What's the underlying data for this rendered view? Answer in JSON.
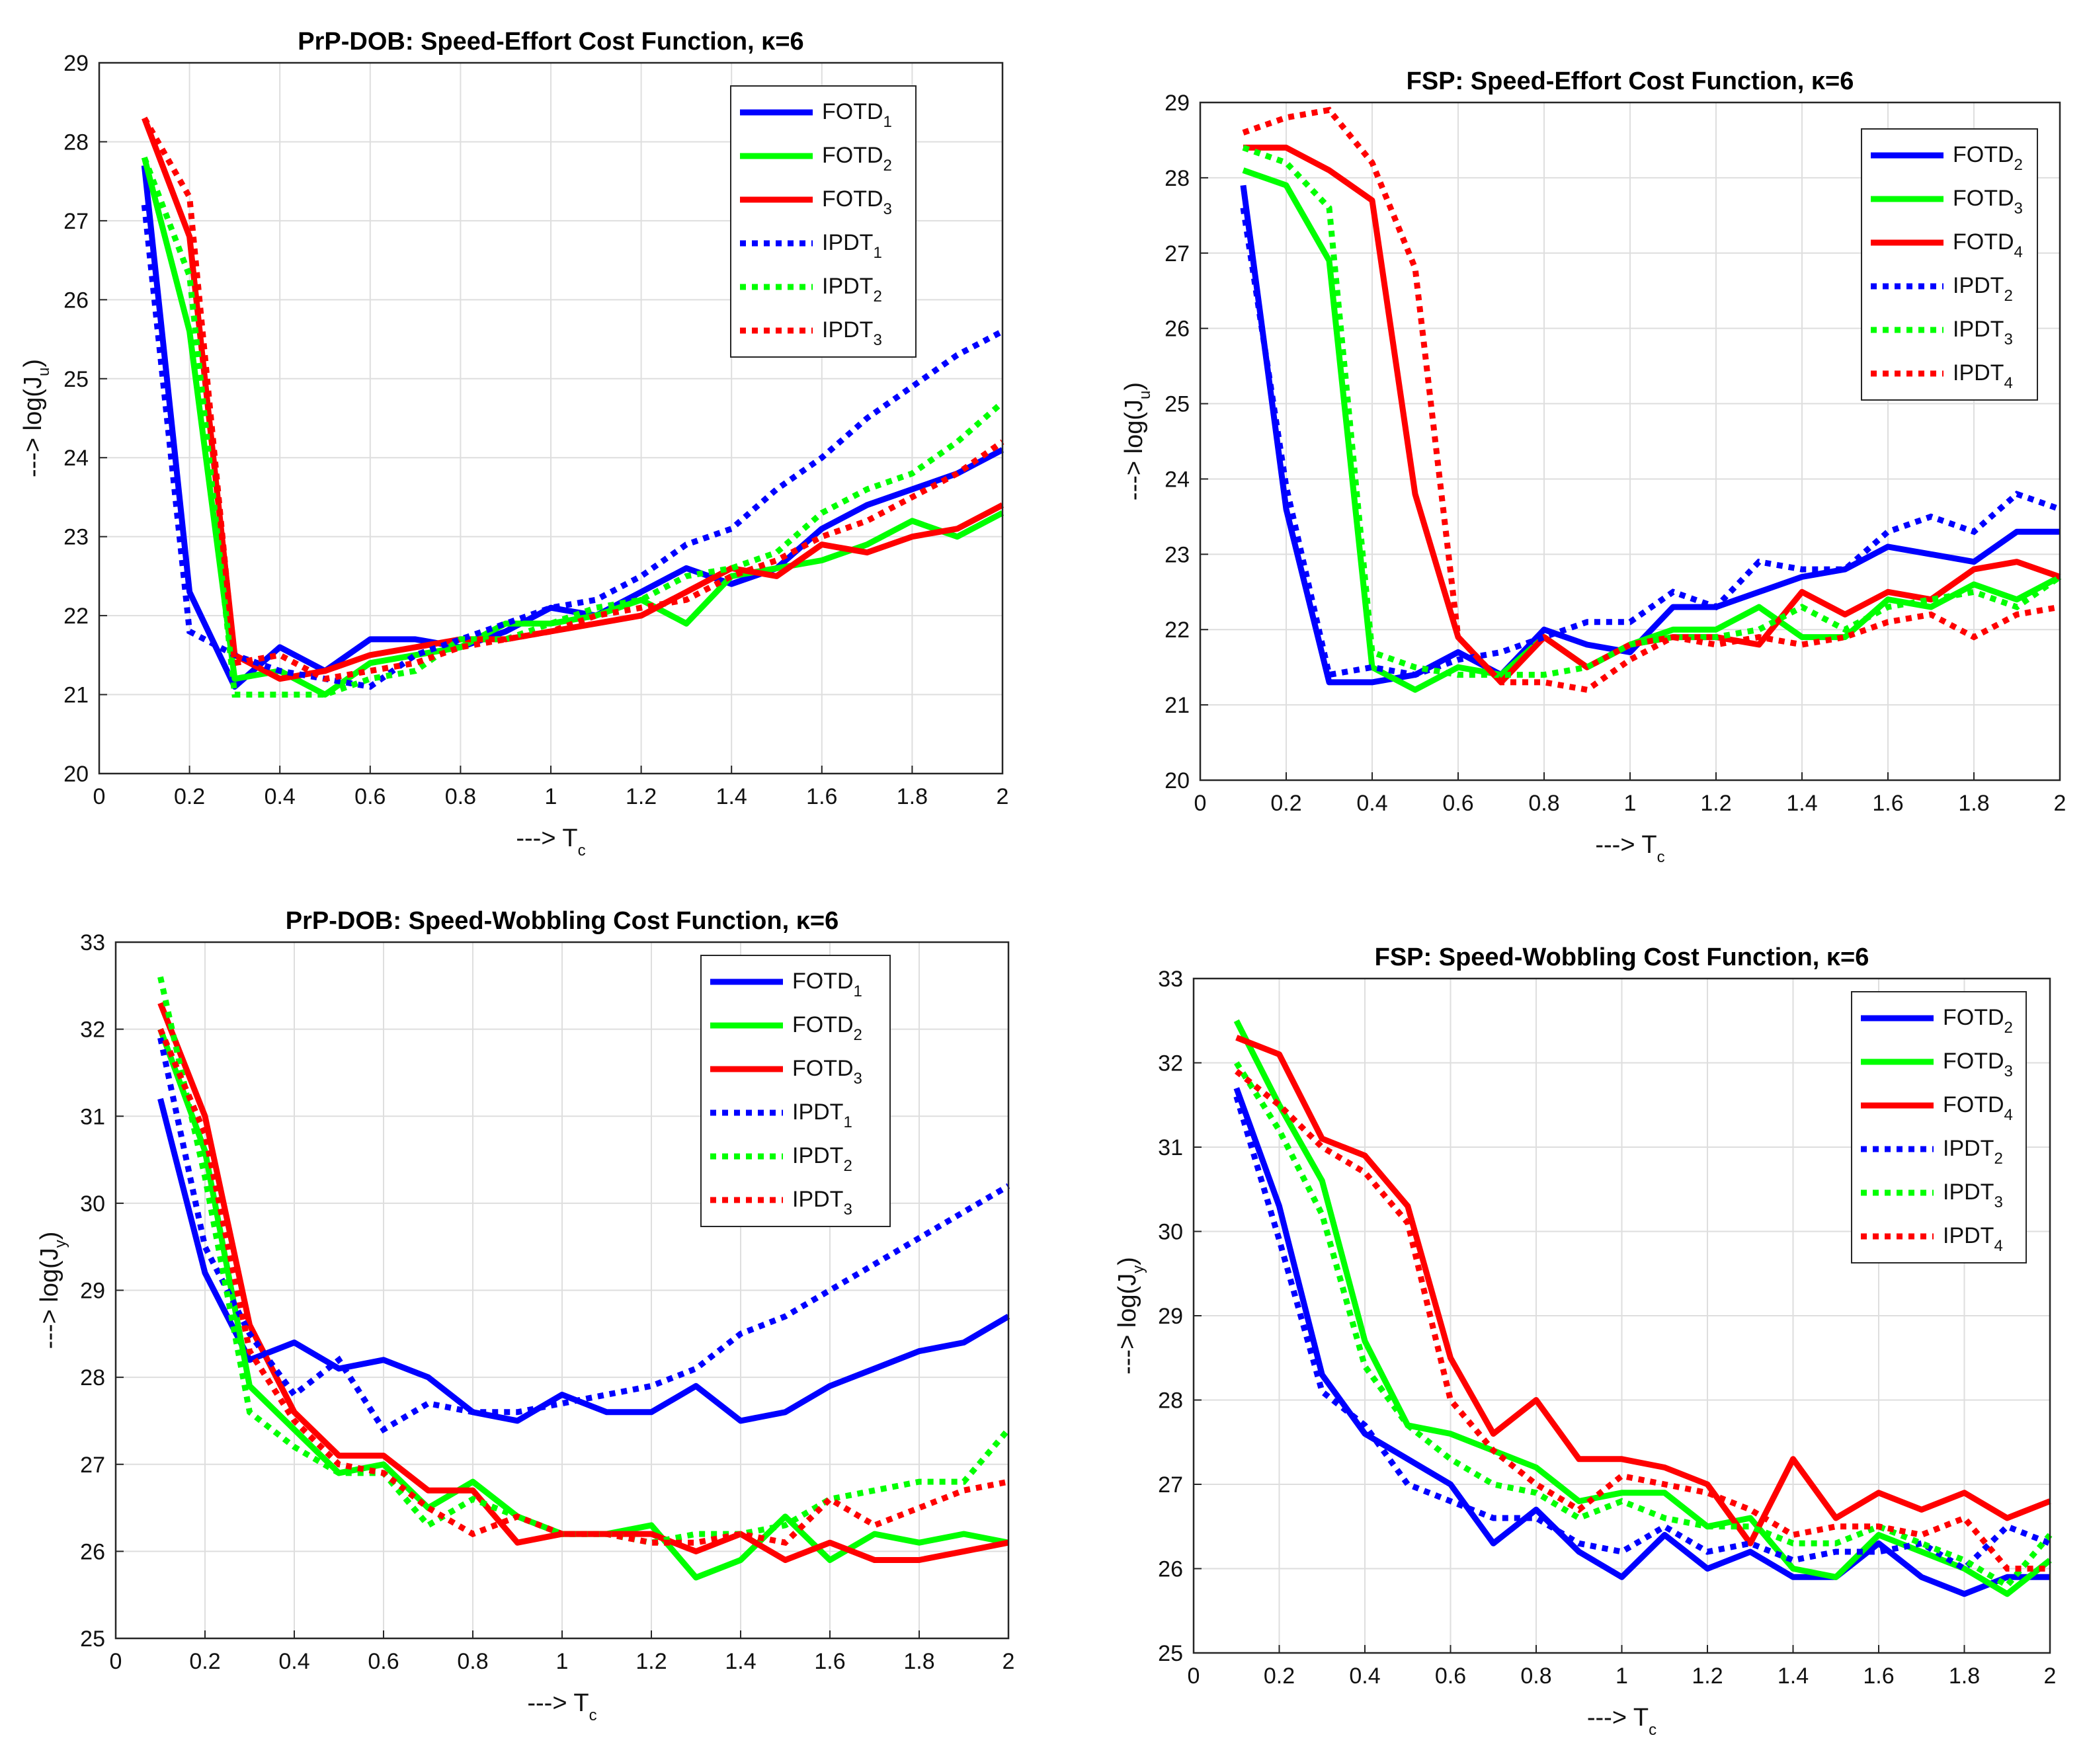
{
  "chart_data": [
    {
      "type": "line",
      "title": "PrP-DOB: Speed-Effort Cost Function, κ=6",
      "xlabel_arrow": "--->",
      "xlabel": "T",
      "xlabel_sub": "c",
      "ylabel_arrow": "--->",
      "ylabel": "log(J",
      "ylabel_sub": "u",
      "ylabel_close": ")",
      "xlim": [
        0,
        2
      ],
      "ylim": [
        20,
        29
      ],
      "xticks": [
        "0",
        "0.2",
        "0.4",
        "0.6",
        "0.8",
        "1",
        "1.2",
        "1.4",
        "1.6",
        "1.8",
        "2"
      ],
      "yticks": [
        "20",
        "21",
        "22",
        "23",
        "24",
        "25",
        "26",
        "27",
        "28",
        "29"
      ],
      "grid": true,
      "legend_position": "top-right",
      "x": [
        0.1,
        0.2,
        0.3,
        0.4,
        0.5,
        0.6,
        0.7,
        0.8,
        0.9,
        1.0,
        1.1,
        1.2,
        1.3,
        1.4,
        1.5,
        1.6,
        1.7,
        1.8,
        1.9,
        2.0
      ],
      "series": [
        {
          "name": "FOTD",
          "sub": "1",
          "color": "#0000ff",
          "dash": "solid",
          "values": [
            27.7,
            22.3,
            21.1,
            21.6,
            21.3,
            21.7,
            21.7,
            21.6,
            21.8,
            22.1,
            22.0,
            22.3,
            22.6,
            22.4,
            22.6,
            23.1,
            23.4,
            23.6,
            23.8,
            24.1
          ]
        },
        {
          "name": "FOTD",
          "sub": "2",
          "color": "#00ff00",
          "dash": "solid",
          "values": [
            27.8,
            25.6,
            21.2,
            21.3,
            21.0,
            21.4,
            21.5,
            21.6,
            21.9,
            21.9,
            22.0,
            22.2,
            21.9,
            22.5,
            22.6,
            22.7,
            22.9,
            23.2,
            23.0,
            23.3
          ]
        },
        {
          "name": "FOTD",
          "sub": "3",
          "color": "#ff0000",
          "dash": "solid",
          "values": [
            28.3,
            26.8,
            21.5,
            21.2,
            21.3,
            21.5,
            21.6,
            21.7,
            21.7,
            21.8,
            21.9,
            22.0,
            22.3,
            22.6,
            22.5,
            22.9,
            22.8,
            23.0,
            23.1,
            23.4
          ]
        },
        {
          "name": "IPDT",
          "sub": "1",
          "color": "#0000ff",
          "dash": "dot",
          "values": [
            27.2,
            21.8,
            21.5,
            21.3,
            21.2,
            21.1,
            21.5,
            21.7,
            21.9,
            22.1,
            22.2,
            22.5,
            22.9,
            23.1,
            23.6,
            24.0,
            24.5,
            24.9,
            25.3,
            25.6
          ]
        },
        {
          "name": "IPDT",
          "sub": "2",
          "color": "#00ff00",
          "dash": "dot",
          "values": [
            27.8,
            26.3,
            21.0,
            21.0,
            21.0,
            21.2,
            21.3,
            21.7,
            21.7,
            21.9,
            22.1,
            22.2,
            22.5,
            22.6,
            22.8,
            23.3,
            23.6,
            23.8,
            24.2,
            24.7
          ]
        },
        {
          "name": "IPDT",
          "sub": "3",
          "color": "#ff0000",
          "dash": "dot",
          "values": [
            28.3,
            27.3,
            21.4,
            21.5,
            21.2,
            21.3,
            21.4,
            21.6,
            21.7,
            21.8,
            22.0,
            22.1,
            22.2,
            22.5,
            22.7,
            23.0,
            23.2,
            23.5,
            23.8,
            24.2
          ]
        }
      ]
    },
    {
      "type": "line",
      "title": "FSP: Speed-Effort Cost Function, κ=6",
      "xlabel_arrow": "--->",
      "xlabel": "T",
      "xlabel_sub": "c",
      "ylabel_arrow": "--->",
      "ylabel": "log(J",
      "ylabel_sub": "u",
      "ylabel_close": ")",
      "xlim": [
        0,
        2
      ],
      "ylim": [
        20,
        29
      ],
      "xticks": [
        "0",
        "0.2",
        "0.4",
        "0.6",
        "0.8",
        "1",
        "1.2",
        "1.4",
        "1.6",
        "1.8",
        "2"
      ],
      "yticks": [
        "20",
        "21",
        "22",
        "23",
        "24",
        "25",
        "26",
        "27",
        "28",
        "29"
      ],
      "grid": true,
      "legend_position": "top-right",
      "x": [
        0.1,
        0.2,
        0.3,
        0.4,
        0.5,
        0.6,
        0.7,
        0.8,
        0.9,
        1.0,
        1.1,
        1.2,
        1.3,
        1.4,
        1.5,
        1.6,
        1.7,
        1.8,
        1.9,
        2.0
      ],
      "series": [
        {
          "name": "FOTD",
          "sub": "2",
          "color": "#0000ff",
          "dash": "solid",
          "values": [
            27.9,
            23.6,
            21.3,
            21.3,
            21.4,
            21.7,
            21.4,
            22.0,
            21.8,
            21.7,
            22.3,
            22.3,
            22.5,
            22.7,
            22.8,
            23.1,
            23.0,
            22.9,
            23.3,
            23.3
          ]
        },
        {
          "name": "FOTD",
          "sub": "3",
          "color": "#00ff00",
          "dash": "solid",
          "values": [
            28.1,
            27.9,
            26.9,
            21.5,
            21.2,
            21.5,
            21.4,
            21.9,
            21.5,
            21.8,
            22.0,
            22.0,
            22.3,
            21.9,
            21.9,
            22.4,
            22.3,
            22.6,
            22.4,
            22.7
          ]
        },
        {
          "name": "FOTD",
          "sub": "4",
          "color": "#ff0000",
          "dash": "solid",
          "values": [
            28.4,
            28.4,
            28.1,
            27.7,
            23.8,
            21.9,
            21.3,
            21.9,
            21.5,
            21.8,
            21.9,
            21.9,
            21.8,
            22.5,
            22.2,
            22.5,
            22.4,
            22.8,
            22.9,
            22.7
          ]
        },
        {
          "name": "IPDT",
          "sub": "2",
          "color": "#0000ff",
          "dash": "dot",
          "values": [
            27.6,
            23.9,
            21.4,
            21.5,
            21.4,
            21.6,
            21.7,
            21.9,
            22.1,
            22.1,
            22.5,
            22.3,
            22.9,
            22.8,
            22.8,
            23.3,
            23.5,
            23.3,
            23.8,
            23.6
          ]
        },
        {
          "name": "IPDT",
          "sub": "3",
          "color": "#00ff00",
          "dash": "dot",
          "values": [
            28.4,
            28.2,
            27.6,
            21.7,
            21.5,
            21.4,
            21.4,
            21.4,
            21.5,
            21.8,
            21.9,
            21.9,
            22.0,
            22.3,
            22.0,
            22.3,
            22.4,
            22.5,
            22.3,
            22.7
          ]
        },
        {
          "name": "IPDT",
          "sub": "4",
          "color": "#ff0000",
          "dash": "dot",
          "values": [
            28.6,
            28.8,
            28.9,
            28.2,
            26.8,
            21.9,
            21.3,
            21.3,
            21.2,
            21.6,
            21.9,
            21.8,
            21.9,
            21.8,
            21.9,
            22.1,
            22.2,
            21.9,
            22.2,
            22.3
          ]
        }
      ]
    },
    {
      "type": "line",
      "title": "PrP-DOB: Speed-Wobbling Cost Function, κ=6",
      "xlabel_arrow": "--->",
      "xlabel": "T",
      "xlabel_sub": "c",
      "ylabel_arrow": "--->",
      "ylabel": "log(J",
      "ylabel_sub": "y",
      "ylabel_close": ")",
      "xlim": [
        0,
        2
      ],
      "ylim": [
        25,
        33
      ],
      "xticks": [
        "0",
        "0.2",
        "0.4",
        "0.6",
        "0.8",
        "1",
        "1.2",
        "1.4",
        "1.6",
        "1.8",
        "2"
      ],
      "yticks": [
        "25",
        "26",
        "27",
        "28",
        "29",
        "30",
        "31",
        "32",
        "33"
      ],
      "grid": true,
      "legend_position": "top-right",
      "x": [
        0.1,
        0.2,
        0.3,
        0.4,
        0.5,
        0.6,
        0.7,
        0.8,
        0.9,
        1.0,
        1.1,
        1.2,
        1.3,
        1.4,
        1.5,
        1.6,
        1.7,
        1.8,
        1.9,
        2.0
      ],
      "series": [
        {
          "name": "FOTD",
          "sub": "1",
          "color": "#0000ff",
          "dash": "solid",
          "values": [
            31.2,
            29.2,
            28.2,
            28.4,
            28.1,
            28.2,
            28.0,
            27.6,
            27.5,
            27.8,
            27.6,
            27.6,
            27.9,
            27.5,
            27.6,
            27.9,
            28.1,
            28.3,
            28.4,
            28.7
          ]
        },
        {
          "name": "FOTD",
          "sub": "2",
          "color": "#00ff00",
          "dash": "solid",
          "values": [
            32.0,
            30.6,
            27.9,
            27.4,
            26.9,
            27.0,
            26.5,
            26.8,
            26.4,
            26.2,
            26.2,
            26.3,
            25.7,
            25.9,
            26.4,
            25.9,
            26.2,
            26.1,
            26.2,
            26.1
          ]
        },
        {
          "name": "FOTD",
          "sub": "3",
          "color": "#ff0000",
          "dash": "solid",
          "values": [
            32.3,
            31.0,
            28.6,
            27.6,
            27.1,
            27.1,
            26.7,
            26.7,
            26.1,
            26.2,
            26.2,
            26.2,
            26.0,
            26.2,
            25.9,
            26.1,
            25.9,
            25.9,
            26.0,
            26.1
          ]
        },
        {
          "name": "IPDT",
          "sub": "1",
          "color": "#0000ff",
          "dash": "dot",
          "values": [
            31.9,
            29.5,
            28.5,
            27.8,
            28.2,
            27.4,
            27.7,
            27.6,
            27.6,
            27.7,
            27.8,
            27.9,
            28.1,
            28.5,
            28.7,
            29.0,
            29.3,
            29.6,
            29.9,
            30.2
          ]
        },
        {
          "name": "IPDT",
          "sub": "2",
          "color": "#00ff00",
          "dash": "dot",
          "values": [
            32.6,
            30.3,
            27.6,
            27.2,
            26.9,
            26.9,
            26.3,
            26.6,
            26.4,
            26.2,
            26.2,
            26.1,
            26.2,
            26.2,
            26.3,
            26.6,
            26.7,
            26.8,
            26.8,
            27.4
          ]
        },
        {
          "name": "IPDT",
          "sub": "3",
          "color": "#ff0000",
          "dash": "dot",
          "values": [
            32.0,
            30.8,
            28.3,
            27.5,
            27.0,
            26.9,
            26.5,
            26.2,
            26.4,
            26.2,
            26.2,
            26.1,
            26.1,
            26.2,
            26.1,
            26.6,
            26.3,
            26.5,
            26.7,
            26.8
          ]
        }
      ]
    },
    {
      "type": "line",
      "title": "FSP: Speed-Wobbling Cost Function, κ=6",
      "xlabel_arrow": "--->",
      "xlabel": "T",
      "xlabel_sub": "c",
      "ylabel_arrow": "--->",
      "ylabel": "log(J",
      "ylabel_sub": "y",
      "ylabel_close": ")",
      "xlim": [
        0,
        2
      ],
      "ylim": [
        25,
        33
      ],
      "xticks": [
        "0",
        "0.2",
        "0.4",
        "0.6",
        "0.8",
        "1",
        "1.2",
        "1.4",
        "1.6",
        "1.8",
        "2"
      ],
      "yticks": [
        "25",
        "26",
        "27",
        "28",
        "29",
        "30",
        "31",
        "32",
        "33"
      ],
      "grid": true,
      "legend_position": "top-right",
      "x": [
        0.1,
        0.2,
        0.3,
        0.4,
        0.5,
        0.6,
        0.7,
        0.8,
        0.9,
        1.0,
        1.1,
        1.2,
        1.3,
        1.4,
        1.5,
        1.6,
        1.7,
        1.8,
        1.9,
        2.0
      ],
      "series": [
        {
          "name": "FOTD",
          "sub": "2",
          "color": "#0000ff",
          "dash": "solid",
          "values": [
            31.7,
            30.3,
            28.3,
            27.6,
            27.3,
            27.0,
            26.3,
            26.7,
            26.2,
            25.9,
            26.4,
            26.0,
            26.2,
            25.9,
            25.9,
            26.3,
            25.9,
            25.7,
            25.9,
            25.9
          ]
        },
        {
          "name": "FOTD",
          "sub": "3",
          "color": "#00ff00",
          "dash": "solid",
          "values": [
            32.5,
            31.5,
            30.6,
            28.7,
            27.7,
            27.6,
            27.4,
            27.2,
            26.8,
            26.9,
            26.9,
            26.5,
            26.6,
            26.0,
            25.9,
            26.4,
            26.2,
            26.0,
            25.7,
            26.1
          ]
        },
        {
          "name": "FOTD",
          "sub": "4",
          "color": "#ff0000",
          "dash": "solid",
          "values": [
            32.3,
            32.1,
            31.1,
            30.9,
            30.3,
            28.5,
            27.6,
            28.0,
            27.3,
            27.3,
            27.2,
            27.0,
            26.3,
            27.3,
            26.6,
            26.9,
            26.7,
            26.9,
            26.6,
            26.8
          ]
        },
        {
          "name": "IPDT",
          "sub": "2",
          "color": "#0000ff",
          "dash": "dot",
          "values": [
            31.6,
            29.9,
            28.1,
            27.7,
            27.0,
            26.8,
            26.6,
            26.6,
            26.3,
            26.2,
            26.5,
            26.2,
            26.3,
            26.1,
            26.2,
            26.2,
            26.3,
            26.0,
            26.5,
            26.3
          ]
        },
        {
          "name": "IPDT",
          "sub": "3",
          "color": "#00ff00",
          "dash": "dot",
          "values": [
            32.0,
            31.2,
            30.2,
            28.4,
            27.7,
            27.3,
            27.0,
            26.9,
            26.6,
            26.8,
            26.6,
            26.5,
            26.5,
            26.3,
            26.3,
            26.5,
            26.3,
            26.1,
            25.8,
            26.4
          ]
        },
        {
          "name": "IPDT",
          "sub": "4",
          "color": "#ff0000",
          "dash": "dot",
          "values": [
            31.9,
            31.5,
            31.0,
            30.7,
            30.1,
            28.0,
            27.4,
            27.0,
            26.7,
            27.1,
            27.0,
            26.9,
            26.7,
            26.4,
            26.5,
            26.5,
            26.4,
            26.6,
            26.0,
            26.0
          ]
        }
      ]
    }
  ]
}
